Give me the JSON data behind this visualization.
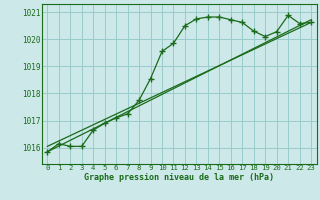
{
  "background_color": "#cce8e8",
  "grid_color": "#99cccc",
  "line_color": "#1a6b1a",
  "title": "Graphe pression niveau de la mer (hPa)",
  "xlim": [
    -0.5,
    23.5
  ],
  "ylim": [
    1015.4,
    1021.3
  ],
  "yticks": [
    1016,
    1017,
    1018,
    1019,
    1020,
    1021
  ],
  "xticks": [
    0,
    1,
    2,
    3,
    4,
    5,
    6,
    7,
    8,
    9,
    10,
    11,
    12,
    13,
    14,
    15,
    16,
    17,
    18,
    19,
    20,
    21,
    22,
    23
  ],
  "curve1_x": [
    0,
    1,
    2,
    3,
    4,
    5,
    6,
    7,
    8,
    9,
    10,
    11,
    12,
    13,
    14,
    15,
    16,
    17,
    18,
    19,
    20,
    21,
    22,
    23
  ],
  "curve1_y": [
    1015.85,
    1016.15,
    1016.05,
    1016.05,
    1016.65,
    1016.9,
    1017.1,
    1017.25,
    1017.75,
    1018.55,
    1019.55,
    1019.85,
    1020.5,
    1020.75,
    1020.82,
    1020.82,
    1020.72,
    1020.62,
    1020.3,
    1020.1,
    1020.28,
    1020.88,
    1020.58,
    1020.62
  ],
  "line2_x": [
    0,
    23
  ],
  "line2_y": [
    1016.05,
    1020.62
  ],
  "line3_x": [
    0,
    23
  ],
  "line3_y": [
    1015.85,
    1020.72
  ],
  "marker": "+"
}
